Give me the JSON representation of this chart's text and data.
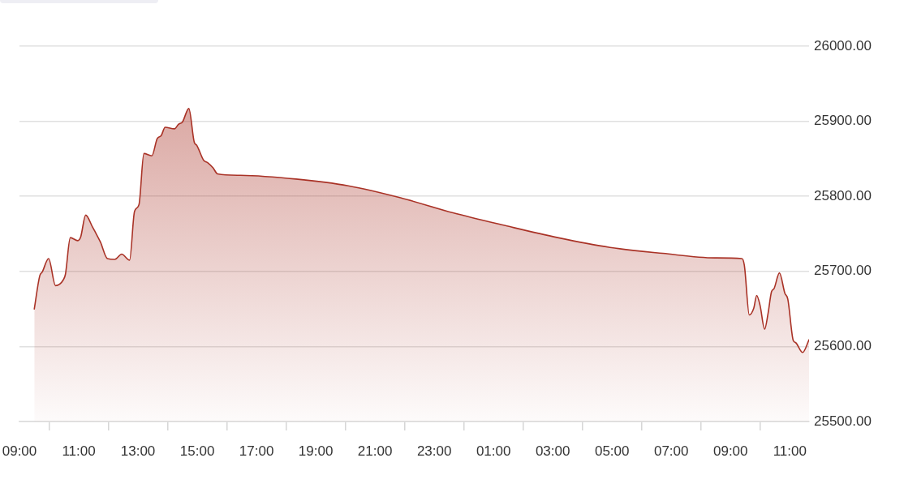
{
  "chart_data": {
    "type": "area",
    "color": "#a93226",
    "marker": "none",
    "line_style": "solid",
    "grid": "y",
    "x": [
      "--01-01T09:30",
      "--01-01T09:41",
      "--01-01T09:46",
      "--01-01T09:59",
      "--01-01T10:13",
      "--01-01T10:29",
      "--01-01T10:33",
      "--01-01T10:43",
      "--01-01T10:58",
      "--01-01T11:04",
      "--01-01T11:14",
      "--01-01T11:28",
      "--01-01T11:33",
      "--01-01T11:44",
      "--01-01T11:58",
      "--01-01T12:13",
      "--01-01T12:27",
      "--01-01T12:43",
      "--01-01T12:53",
      "--01-01T13:02",
      "--01-01T13:12",
      "--01-01T13:28",
      "--01-01T13:39",
      "--01-01T13:47",
      "--01-01T13:55",
      "--01-01T14:14",
      "--01-01T14:22",
      "--01-01T14:30",
      "--01-01T14:43",
      "--01-01T14:54",
      "--01-01T14:59",
      "--01-01T15:13",
      "--01-01T15:21",
      "--01-01T15:32",
      "--01-01T15:41",
      "--01-01T16:28",
      "--01-01T18:20",
      "--01-01T20:06",
      "--01-01T21:52",
      "--01-01T23:38",
      "--01-02T01:24",
      "--01-02T03:10",
      "--01-02T04:56",
      "--01-02T06:43",
      "--01-02T08:28",
      "--01-02T09:23",
      "--01-02T09:28",
      "--01-02T09:38",
      "--01-02T09:47",
      "--01-02T09:53",
      "--01-02T10:00",
      "--01-02T10:09",
      "--01-02T10:16",
      "--01-02T10:23",
      "--01-02T10:28",
      "--01-02T10:39",
      "--01-02T10:50",
      "--01-02T10:56",
      "--01-02T11:07",
      "--01-02T11:12",
      "--01-02T11:26",
      "--01-02T11:39"
    ],
    "values": [
      25650,
      25694,
      25699,
      25717,
      25681,
      25689,
      25696,
      25745,
      25741,
      25746,
      25775,
      25759,
      25753,
      25739,
      25717,
      25716,
      25723,
      25715,
      25780,
      25789,
      25857,
      25854,
      25877,
      25881,
      25892,
      25890,
      25896,
      25899,
      25917,
      25872,
      25868,
      25848,
      25845,
      25838,
      25830,
      25828,
      25823,
      25814,
      25798,
      25778,
      25761,
      25745,
      25732,
      25724,
      25718,
      25717,
      25708,
      25642,
      25651,
      25668,
      25654,
      25623,
      25644,
      25673,
      25677,
      25698,
      25671,
      25663,
      25608,
      25605,
      25592,
      25609
    ],
    "xlim": [
      "--01-01T09:00",
      "--01-02T11:39"
    ],
    "xticks": [
      {
        "value": "--01-01T09:00",
        "label": "09:00"
      },
      {
        "value": "--01-01T10:00",
        "label": null
      },
      {
        "value": "--01-01T11:00",
        "label": "11:00"
      },
      {
        "value": "--01-01T12:00",
        "label": null
      },
      {
        "value": "--01-01T13:00",
        "label": "13:00"
      },
      {
        "value": "--01-01T14:00",
        "label": null
      },
      {
        "value": "--01-01T15:00",
        "label": "15:00"
      },
      {
        "value": "--01-01T16:00",
        "label": null
      },
      {
        "value": "--01-01T17:00",
        "label": "17:00"
      },
      {
        "value": "--01-01T18:00",
        "label": null
      },
      {
        "value": "--01-01T19:00",
        "label": "19:00"
      },
      {
        "value": "--01-01T20:00",
        "label": null
      },
      {
        "value": "--01-01T21:00",
        "label": "21:00"
      },
      {
        "value": "--01-01T22:00",
        "label": null
      },
      {
        "value": "--01-01T23:00",
        "label": "23:00"
      },
      {
        "value": "--01-02T00:00",
        "label": null
      },
      {
        "value": "--01-02T01:00",
        "label": "01:00"
      },
      {
        "value": "--01-02T02:00",
        "label": null
      },
      {
        "value": "--01-02T03:00",
        "label": "03:00"
      },
      {
        "value": "--01-02T04:00",
        "label": null
      },
      {
        "value": "--01-02T05:00",
        "label": "05:00"
      },
      {
        "value": "--01-02T06:00",
        "label": null
      },
      {
        "value": "--01-02T07:00",
        "label": "07:00"
      },
      {
        "value": "--01-02T08:00",
        "label": null
      },
      {
        "value": "--01-02T09:00",
        "label": "09:00"
      },
      {
        "value": "--01-02T10:00",
        "label": null
      },
      {
        "value": "--01-02T11:00",
        "label": "11:00"
      }
    ],
    "ylim": [
      25500,
      26000
    ],
    "yticks": [
      {
        "value": 25500,
        "label": "25500.00"
      },
      {
        "value": 25600,
        "label": "25600.00"
      },
      {
        "value": 25700,
        "label": "25700.00"
      },
      {
        "value": 25800,
        "label": "25800.00"
      },
      {
        "value": 25900,
        "label": "25900.00"
      },
      {
        "value": 26000,
        "label": "26000.00"
      }
    ]
  }
}
